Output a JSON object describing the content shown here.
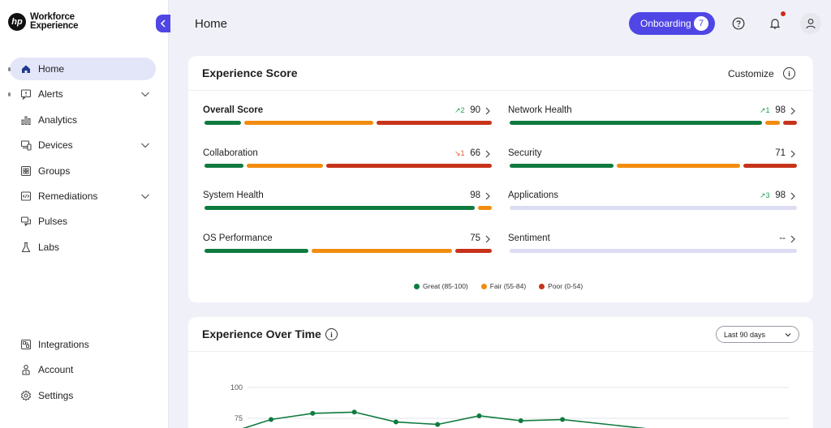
{
  "brand": {
    "logo_mark": "hp",
    "line1": "Workforce",
    "line2": "Experience"
  },
  "sidebar": {
    "items": [
      {
        "label": "Home",
        "icon": "home-icon",
        "active": true,
        "expandable": false
      },
      {
        "label": "Alerts",
        "icon": "alert-icon",
        "active": false,
        "expandable": true
      },
      {
        "label": "Analytics",
        "icon": "analytics-icon",
        "active": false,
        "expandable": false
      },
      {
        "label": "Devices",
        "icon": "devices-icon",
        "active": false,
        "expandable": true
      },
      {
        "label": "Groups",
        "icon": "groups-icon",
        "active": false,
        "expandable": false
      },
      {
        "label": "Remediations",
        "icon": "code-icon",
        "active": false,
        "expandable": true
      },
      {
        "label": "Pulses",
        "icon": "pulses-icon",
        "active": false,
        "expandable": false
      },
      {
        "label": "Labs",
        "icon": "flask-icon",
        "active": false,
        "expandable": false
      }
    ],
    "bottom_items": [
      {
        "label": "Integrations",
        "icon": "integrations-icon"
      },
      {
        "label": "Account",
        "icon": "account-icon"
      },
      {
        "label": "Settings",
        "icon": "gear-icon"
      }
    ]
  },
  "header": {
    "title": "Home",
    "onboarding_label": "Onboarding",
    "onboarding_count": "7"
  },
  "score_card": {
    "title": "Experience Score",
    "customize_label": "Customize",
    "metrics_left": [
      {
        "name": "Overall Score",
        "value": "90",
        "trend": "↗2",
        "trend_dir": "up",
        "bold": true,
        "bar": [
          0.13,
          0.46,
          0.41
        ]
      },
      {
        "name": "Collaboration",
        "value": "66",
        "trend": "↘1",
        "trend_dir": "down",
        "bold": false,
        "bar": [
          0.14,
          0.27,
          0.59
        ]
      },
      {
        "name": "System Health",
        "value": "98",
        "trend": "",
        "trend_dir": "",
        "bold": false,
        "bar": [
          0.95,
          0.05,
          0
        ]
      },
      {
        "name": "OS Performance",
        "value": "75",
        "trend": "",
        "trend_dir": "",
        "bold": false,
        "bar": [
          0.37,
          0.5,
          0.13
        ]
      }
    ],
    "metrics_right": [
      {
        "name": "Network Health",
        "value": "98",
        "trend": "↗1",
        "trend_dir": "up",
        "bold": false,
        "bar": [
          0.9,
          0.05,
          0.05
        ]
      },
      {
        "name": "Security",
        "value": "71",
        "trend": "",
        "trend_dir": "",
        "bold": false,
        "bar": [
          0.37,
          0.44,
          0.19
        ]
      },
      {
        "name": "Applications",
        "value": "98",
        "trend": "↗3",
        "trend_dir": "up",
        "bold": false,
        "bar": null
      },
      {
        "name": "Sentiment",
        "value": "--",
        "trend": "",
        "trend_dir": "",
        "bold": false,
        "bar": null
      }
    ],
    "legend": [
      {
        "label": "Great (85-100)",
        "color": "#0f7b3f"
      },
      {
        "label": "Fair (55-84)",
        "color": "#f28c0f"
      },
      {
        "label": "Poor (0-54)",
        "color": "#c7321b"
      }
    ]
  },
  "colors": {
    "accent": "#4f46e5",
    "great": "#0f7b3f",
    "fair": "#f28c0f",
    "poor": "#c7321b",
    "empty": "#dcdcf3"
  },
  "time_card": {
    "title": "Experience Over Time",
    "range_label": "Last 90 days"
  },
  "chart_data": {
    "type": "line",
    "ytick_labels": [
      "100",
      "75"
    ],
    "series": [
      {
        "values": [
          74,
          79,
          80,
          72,
          70,
          77,
          73,
          74
        ]
      }
    ]
  }
}
